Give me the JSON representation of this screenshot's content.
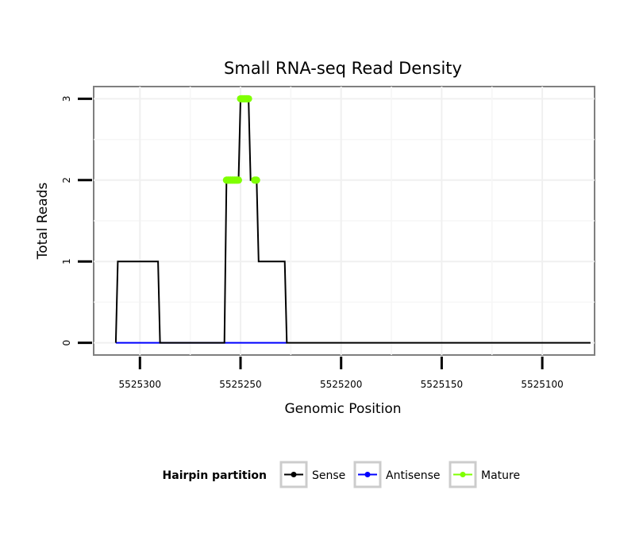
{
  "chart_data": {
    "type": "line",
    "title": "Small RNA-seq Read Density",
    "xlabel": "Genomic Position",
    "ylabel": "Total Reads",
    "x_reversed": true,
    "xlim": [
      5525323,
      5525074
    ],
    "ylim": [
      -0.15,
      3.15
    ],
    "x_ticks": [
      5525300,
      5525250,
      5525200,
      5525150,
      5525100
    ],
    "x_tick_labels": [
      "5525300",
      "5525250",
      "5525200",
      "5525150",
      "5525100"
    ],
    "y_ticks": [
      0,
      1,
      2,
      3
    ],
    "y_tick_labels": [
      "0",
      "1",
      "2",
      "3"
    ],
    "grid": true,
    "legend": {
      "title": "Hairpin partition",
      "placement": "bottom",
      "entries": [
        {
          "name": "Sense",
          "color": "#000000"
        },
        {
          "name": "Antisense",
          "color": "#0000ff"
        },
        {
          "name": "Mature",
          "color": "#7fff00"
        }
      ]
    },
    "series": [
      {
        "name": "Sense",
        "color": "#000000",
        "style": "line",
        "x": [
          5525312,
          5525311,
          5525291,
          5525290,
          5525258,
          5525257,
          5525251,
          5525250,
          5525246,
          5525245,
          5525242,
          5525241,
          5525228,
          5525227,
          5525076
        ],
        "y": [
          0,
          1,
          1,
          0,
          0,
          2,
          2,
          3,
          3,
          2,
          2,
          1,
          1,
          0,
          0
        ]
      },
      {
        "name": "Antisense",
        "color": "#0000ff",
        "style": "line",
        "x": [
          5525312,
          5525227
        ],
        "y": [
          0,
          0
        ]
      },
      {
        "name": "Mature",
        "color": "#7fff00",
        "style": "points",
        "x": [
          5525257,
          5525256,
          5525255,
          5525254,
          5525253,
          5525252,
          5525251,
          5525250,
          5525249,
          5525248,
          5525247,
          5525246,
          5525243,
          5525242
        ],
        "y": [
          2,
          2,
          2,
          2,
          2,
          2,
          2,
          3,
          3,
          3,
          3,
          3,
          2,
          2
        ]
      }
    ]
  }
}
